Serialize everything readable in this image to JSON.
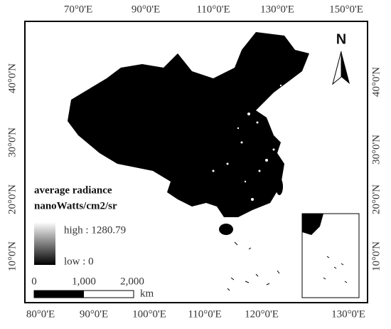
{
  "map": {
    "top_labels": [
      "70°0'E",
      "90°0'E",
      "110°0'E",
      "130°0'E",
      "150°0'E"
    ],
    "bottom_labels": [
      "80°0'E",
      "90°0'E",
      "100°0'E",
      "110°0'E",
      "120°0'E",
      "130°0'E"
    ],
    "left_labels": [
      "40°0'N",
      "30°0'N",
      "20°0'N",
      "10°0'N"
    ],
    "right_labels": [
      "40°0'N",
      "30°0'N",
      "20°0'N",
      "10°0'N"
    ],
    "north": "N",
    "legend": {
      "title": "average radiance",
      "unit": "nanoWatts/cm2/sr",
      "high": "high : 1280.79",
      "low": "low : 0"
    },
    "scale": {
      "labels": [
        "0",
        "1,000",
        "2,000"
      ],
      "unit": "km"
    }
  }
}
